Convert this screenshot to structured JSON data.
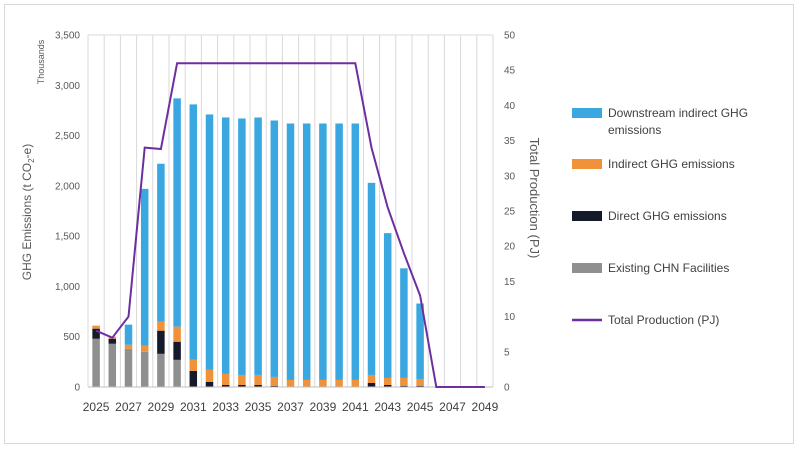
{
  "chart_data": {
    "type": "bar",
    "stacked": true,
    "years": [
      2025,
      2026,
      2027,
      2028,
      2029,
      2030,
      2031,
      2032,
      2033,
      2034,
      2035,
      2036,
      2037,
      2038,
      2039,
      2040,
      2041,
      2042,
      2043,
      2044,
      2045,
      2046,
      2047,
      2048,
      2049
    ],
    "x_tick_labels": [
      "2025",
      "2027",
      "2029",
      "2031",
      "2033",
      "2035",
      "2037",
      "2039",
      "2041",
      "2043",
      "2045",
      "2047",
      "2049"
    ],
    "series": [
      {
        "name": "Existing CHN Facilities",
        "color": "#8f8f8f",
        "values": [
          480,
          430,
          380,
          350,
          330,
          270,
          0,
          0,
          0,
          0,
          0,
          0,
          0,
          0,
          0,
          0,
          0,
          0,
          0,
          0,
          0,
          0,
          0,
          0,
          0
        ]
      },
      {
        "name": "Direct GHG emissions",
        "color": "#141a29",
        "values": [
          100,
          50,
          0,
          0,
          230,
          180,
          160,
          50,
          20,
          20,
          20,
          10,
          0,
          0,
          0,
          0,
          0,
          40,
          20,
          10,
          10,
          0,
          0,
          0,
          0
        ]
      },
      {
        "name": "Indirect GHG emissions",
        "color": "#f0923a",
        "values": [
          30,
          20,
          40,
          60,
          90,
          150,
          110,
          120,
          110,
          100,
          100,
          90,
          70,
          70,
          70,
          70,
          70,
          80,
          70,
          80,
          70,
          0,
          0,
          0,
          0
        ]
      },
      {
        "name": "Downstream indirect GHG emissions",
        "color": "#3ba7e0",
        "values": [
          0,
          0,
          200,
          1560,
          1570,
          2270,
          2540,
          2540,
          2550,
          2550,
          2560,
          2550,
          2550,
          2550,
          2550,
          2550,
          2550,
          1910,
          1440,
          1090,
          750,
          0,
          0,
          0,
          0
        ]
      }
    ],
    "line": {
      "name": "Total Production (PJ)",
      "color": "#6d2fa0",
      "axis": "right",
      "values": [
        8,
        7,
        10,
        34,
        33.8,
        46,
        46,
        46,
        46,
        46,
        46,
        46,
        46,
        46,
        46,
        46,
        46,
        34,
        25.5,
        19,
        13,
        0,
        0,
        0,
        0
      ]
    },
    "y_left": {
      "label": "GHG Emissions (t CO2-e)",
      "label_main": "GHG Emissions (t CO",
      "label_sub": "2",
      "label_end": "-e)",
      "units_note": "Thousands",
      "range": [
        0,
        3500
      ],
      "ticks": [
        "0",
        "500",
        "1,000",
        "1,500",
        "2,000",
        "2,500",
        "3,000",
        "3,500"
      ]
    },
    "y_right": {
      "label": "Total Production (PJ)",
      "range": [
        0,
        50
      ],
      "ticks": [
        "0",
        "5",
        "10",
        "15",
        "20",
        "25",
        "30",
        "35",
        "40",
        "45",
        "50"
      ]
    },
    "legend": {
      "placement": "right",
      "items": [
        {
          "label": "Downstream indirect GHG emissions",
          "line1": "Downstream indirect GHG",
          "line2": "emissions",
          "color": "#3ba7e0",
          "kind": "box"
        },
        {
          "label": "Indirect GHG emissions",
          "line1": "Indirect GHG emissions",
          "line2": "",
          "color": "#f0923a",
          "kind": "box"
        },
        {
          "label": "Direct GHG emissions",
          "line1": "Direct GHG emissions",
          "line2": "",
          "color": "#141a29",
          "kind": "box"
        },
        {
          "label": "Existing CHN Facilities",
          "line1": "Existing CHN Facilities",
          "line2": "",
          "color": "#8f8f8f",
          "kind": "box"
        },
        {
          "label": "Total Production (PJ)",
          "line1": "Total Production (PJ)",
          "line2": "",
          "color": "#6d2fa0",
          "kind": "line"
        }
      ]
    },
    "grid": {
      "vertical": true,
      "horizontal": false
    }
  }
}
